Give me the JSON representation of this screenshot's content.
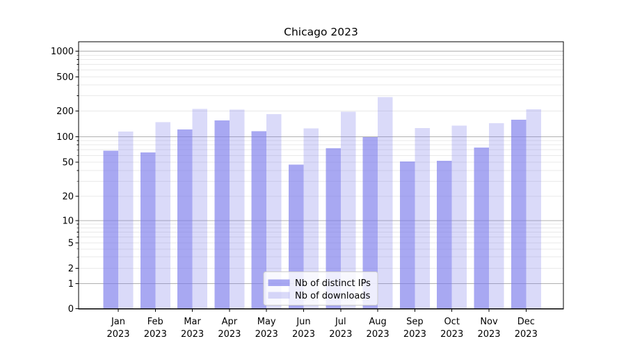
{
  "figure": {
    "title": "Chicago 2023"
  },
  "chart_data": {
    "type": "bar",
    "title": "Chicago 2023",
    "categories": [
      "Jan",
      "Feb",
      "Mar",
      "Apr",
      "May",
      "Jun",
      "Jul",
      "Aug",
      "Sep",
      "Oct",
      "Nov",
      "Dec"
    ],
    "x_year": "2023",
    "series": [
      {
        "name": "Nb of distinct IPs",
        "color": "rgba(122,122,235,0.65)",
        "values": [
          68,
          65,
          121,
          155,
          116,
          47,
          73,
          99,
          51,
          52,
          74,
          157
        ]
      },
      {
        "name": "Nb of downloads",
        "color": "rgba(122,122,235,0.28)",
        "values": [
          115,
          147,
          211,
          206,
          183,
          125,
          196,
          290,
          126,
          134,
          144,
          208
        ]
      }
    ],
    "y_ticks": [
      0,
      1,
      2,
      5,
      10,
      20,
      50,
      100,
      200,
      500,
      1000
    ],
    "y_scale": "symlog",
    "ylim": [
      0,
      1300
    ],
    "grid": true,
    "legend_position": "lower center",
    "colors": {
      "bar_base": "#7a7aeb",
      "grid_major": "#b0b0b0",
      "grid_minor": "#e9e9e9",
      "axis": "#000000"
    }
  }
}
